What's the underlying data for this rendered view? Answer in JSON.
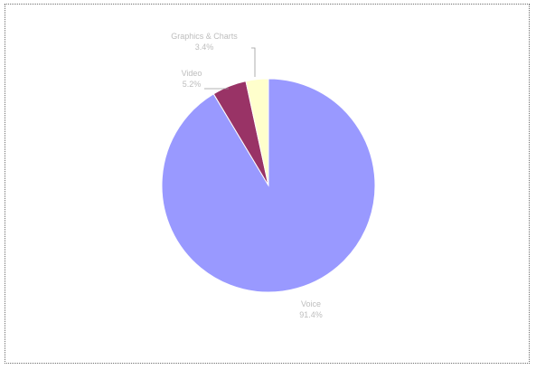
{
  "chart_data": {
    "type": "pie",
    "title": "",
    "start_angle_deg": 0,
    "direction": "clockwise",
    "slices": [
      {
        "name": "Voice",
        "value": 91.4,
        "label_value": "91.4%",
        "color": "#9999ff"
      },
      {
        "name": "Video",
        "value": 5.2,
        "label_value": "5.2%",
        "color": "#993366"
      },
      {
        "name": "Graphics & Charts",
        "value": 3.4,
        "label_value": "3.4%",
        "color": "#ffffcc"
      }
    ],
    "slice_border_color": "#ffffff",
    "legend": "none",
    "grid": false
  }
}
